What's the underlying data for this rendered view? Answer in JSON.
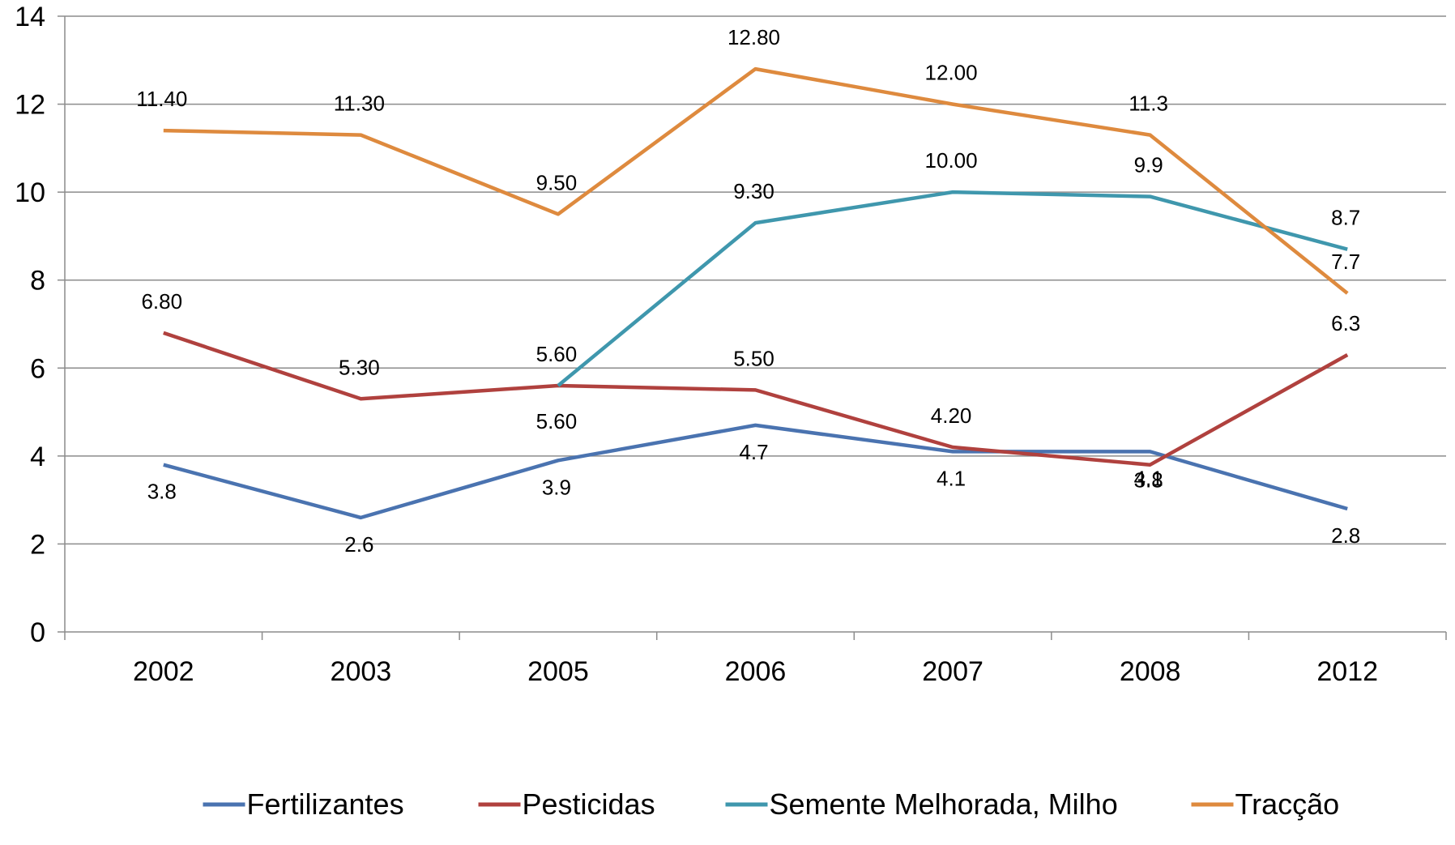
{
  "chart_data": {
    "type": "line",
    "categories": [
      "2002",
      "2003",
      "2005",
      "2006",
      "2007",
      "2008",
      "2012"
    ],
    "ylim": [
      0,
      14
    ],
    "yticks": [
      0,
      2,
      4,
      6,
      8,
      10,
      12,
      14
    ],
    "grid": true,
    "legend_position": "bottom",
    "series": [
      {
        "name": "Fertilizantes",
        "color": "#4a73b0",
        "values": [
          3.8,
          2.6,
          3.9,
          4.7,
          4.1,
          4.1,
          2.8
        ],
        "labels": [
          "3.8",
          "2.6",
          "3.9",
          "4.7",
          "4.1",
          "4.1",
          "2.8"
        ]
      },
      {
        "name": "Pesticidas",
        "color": "#b0413e",
        "values": [
          6.8,
          5.3,
          5.6,
          5.5,
          4.2,
          3.8,
          6.3
        ],
        "labels": [
          "6.80",
          "5.30",
          "5.60",
          "5.50",
          "4.20",
          "3.8",
          "6.3"
        ]
      },
      {
        "name": "Semente Melhorada, Milho",
        "color": "#3f97ad",
        "values": [
          null,
          null,
          5.6,
          9.3,
          10.0,
          9.9,
          8.7
        ],
        "labels": [
          null,
          null,
          "5.60",
          "9.30",
          "10.00",
          "9.9",
          "8.7"
        ]
      },
      {
        "name": "Tracção",
        "color": "#de8a3e",
        "values": [
          11.4,
          11.3,
          9.5,
          12.8,
          12.0,
          11.3,
          7.7
        ],
        "labels": [
          "11.40",
          "11.30",
          "9.50",
          "12.80",
          "12.00",
          "11.3",
          "7.7"
        ]
      }
    ]
  }
}
